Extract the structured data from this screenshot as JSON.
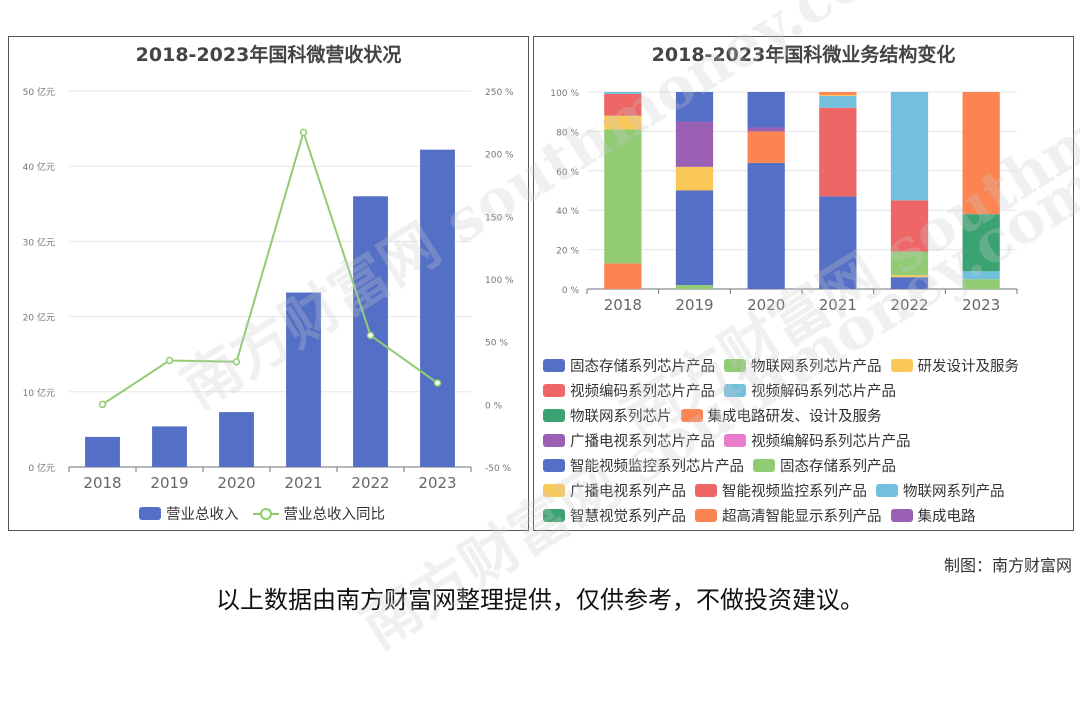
{
  "chart_data": [
    {
      "type": "bar",
      "title": "2018-2023年国科微营收状况",
      "categories": [
        "2018",
        "2019",
        "2020",
        "2021",
        "2022",
        "2023"
      ],
      "series": [
        {
          "name": "营业总收入",
          "type": "bar",
          "axis": "left",
          "color": "#5470c6",
          "values": [
            4.0,
            5.4,
            7.3,
            23.2,
            36.0,
            42.2
          ]
        },
        {
          "name": "营业总收入同比",
          "type": "line",
          "axis": "right",
          "color": "#91cc75",
          "values": [
            0,
            35,
            34,
            217,
            55,
            17
          ]
        }
      ],
      "yaxis_left": {
        "min": 0,
        "max": 50,
        "step": 10,
        "unit": "亿元",
        "ticks": [
          "0 亿元",
          "10 亿元",
          "20 亿元",
          "30 亿元",
          "40 亿元",
          "50 亿元"
        ]
      },
      "yaxis_right": {
        "min": -50,
        "max": 250,
        "step": 50,
        "unit": "%",
        "ticks": [
          "-50 %",
          "0 %",
          "50 %",
          "100 %",
          "150 %",
          "200 %",
          "250 %"
        ]
      },
      "grid": true,
      "legend": "bottom"
    },
    {
      "type": "bar",
      "stacked": true,
      "title": "2018-2023年国科微业务结构变化",
      "categories": [
        "2018",
        "2019",
        "2020",
        "2021",
        "2022",
        "2023"
      ],
      "yaxis": {
        "min": 0,
        "max": 100,
        "ticks": [
          "0 %",
          "20 %",
          "40 %",
          "60 %",
          "80 %",
          "100 %"
        ]
      },
      "series": [
        {
          "name": "集成电路研发、设计及服务",
          "color": "#fc8452",
          "values": [
            13,
            0,
            0,
            0,
            0,
            0
          ]
        },
        {
          "name": "物联网系列芯片产品",
          "color": "#91cc75",
          "values": [
            68,
            2,
            0,
            0,
            0,
            0
          ]
        },
        {
          "name": "研发设计及服务",
          "color": "#fac858",
          "values": [
            7,
            0,
            0,
            0,
            0,
            0
          ]
        },
        {
          "name": "视频编码系列芯片产品",
          "color": "#ee6666",
          "values": [
            11,
            0,
            0,
            0,
            0,
            0
          ]
        },
        {
          "name": "视频解码系列芯片产品",
          "color": "#73c0de",
          "values": [
            1,
            0,
            0,
            0,
            0,
            0
          ]
        },
        {
          "name": "固态存储系列芯片产品",
          "color": "#5470c6",
          "values": [
            0,
            48,
            0,
            0,
            0,
            0
          ]
        },
        {
          "name": "研发设计及服务",
          "color": "#fac858",
          "values": [
            0,
            12,
            0,
            0,
            0,
            0
          ]
        },
        {
          "name": "广播电视系列芯片产品",
          "color": "#9a60b4",
          "values": [
            0,
            23,
            0,
            0,
            0,
            0
          ]
        },
        {
          "name": "固态存储系列芯片产品",
          "color": "#5470c6",
          "values": [
            0,
            15,
            0,
            0,
            0,
            0
          ]
        },
        {
          "name": "智能视频监控系列芯片产品",
          "color": "#5470c6",
          "values": [
            0,
            0,
            64,
            47,
            6,
            0
          ]
        },
        {
          "name": "集成电路研发、设计及服务",
          "color": "#fc8452",
          "values": [
            0,
            0,
            16,
            0,
            0,
            0
          ]
        },
        {
          "name": "集成电路",
          "color": "#9a60b4",
          "values": [
            0,
            0,
            2,
            0,
            0,
            0
          ]
        },
        {
          "name": "固态存储系列芯片产品",
          "color": "#5470c6",
          "values": [
            0,
            0,
            18,
            0,
            0,
            0
          ]
        },
        {
          "name": "视频编码系列芯片产品",
          "color": "#ee6666",
          "values": [
            0,
            0,
            0,
            45,
            0,
            0
          ]
        },
        {
          "name": "视频解码系列芯片产品",
          "color": "#73c0de",
          "values": [
            0,
            0,
            0,
            6,
            0,
            0
          ]
        },
        {
          "name": "研发设计及服务",
          "color": "#fac858",
          "values": [
            0,
            0,
            0,
            0.5,
            1,
            0
          ]
        },
        {
          "name": "集成电路研发、设计及服务",
          "color": "#fc8452",
          "values": [
            0,
            0,
            0,
            1.5,
            0,
            0
          ]
        },
        {
          "name": "固态存储系列产品",
          "color": "#91cc75",
          "values": [
            0,
            0,
            0,
            0,
            12,
            5
          ]
        },
        {
          "name": "智能视频监控系列产品",
          "color": "#ee6666",
          "values": [
            0,
            0,
            0,
            0,
            26,
            0
          ]
        },
        {
          "name": "物联网系列产品",
          "color": "#73c0de",
          "values": [
            0,
            0,
            0,
            0,
            55,
            4
          ]
        },
        {
          "name": "智慧视觉系列产品",
          "color": "#3ba272",
          "values": [
            0,
            0,
            0,
            0,
            0,
            29
          ]
        },
        {
          "name": "超高清智能显示系列产品",
          "color": "#fc8452",
          "values": [
            0,
            0,
            0,
            0,
            0,
            62
          ]
        }
      ],
      "legend_position": "bottom"
    }
  ],
  "legend_left": [
    {
      "label": "营业总收入",
      "kind": "bar",
      "color": "#5470c6"
    },
    {
      "label": "营业总收入同比",
      "kind": "line",
      "color": "#91cc75"
    }
  ],
  "legend_right": [
    [
      {
        "label": "固态存储系列芯片产品",
        "color": "#5470c6"
      },
      {
        "label": "物联网系列芯片产品",
        "color": "#91cc75"
      },
      {
        "label": "研发设计及服务",
        "color": "#fac858"
      }
    ],
    [
      {
        "label": "视频编码系列芯片产品",
        "color": "#ee6666"
      },
      {
        "label": "视频解码系列芯片产品",
        "color": "#73c0de"
      }
    ],
    [
      {
        "label": "物联网系列芯片",
        "color": "#3ba272"
      },
      {
        "label": "集成电路研发、设计及服务",
        "color": "#fc8452"
      }
    ],
    [
      {
        "label": "广播电视系列芯片产品",
        "color": "#9a60b4"
      },
      {
        "label": "视频编解码系列芯片产品",
        "color": "#ea7ccc"
      }
    ],
    [
      {
        "label": "智能视频监控系列芯片产品",
        "color": "#5470c6"
      },
      {
        "label": "固态存储系列产品",
        "color": "#91cc75"
      }
    ],
    [
      {
        "label": "广播电视系列产品",
        "color": "#fac858"
      },
      {
        "label": "智能视频监控系列产品",
        "color": "#ee6666"
      },
      {
        "label": "物联网系列产品",
        "color": "#73c0de"
      }
    ],
    [
      {
        "label": "智慧视觉系列产品",
        "color": "#3ba272"
      },
      {
        "label": "超高清智能显示系列产品",
        "color": "#fc8452"
      },
      {
        "label": "集成电路",
        "color": "#9a60b4"
      }
    ]
  ],
  "watermark": "南方财富网 southmoney.com",
  "credit": "制图：南方财富网",
  "disclaimer": "以上数据由南方财富网整理提供，仅供参考，不做投资建议。"
}
